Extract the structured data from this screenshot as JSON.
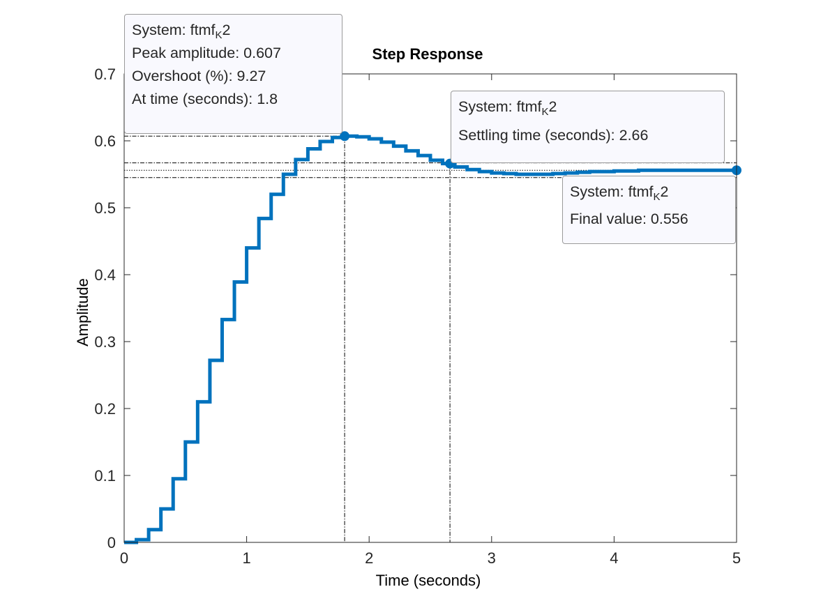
{
  "chart_data": {
    "type": "line",
    "title": "Step Response",
    "xlabel": "Time (seconds)",
    "ylabel": "Amplitude",
    "xlim": [
      0,
      5
    ],
    "ylim": [
      0,
      0.7
    ],
    "xticks": [
      "0",
      "1",
      "2",
      "3",
      "4",
      "5"
    ],
    "yticks": [
      "0",
      "0.1",
      "0.2",
      "0.3",
      "0.4",
      "0.5",
      "0.6",
      "0.7"
    ],
    "grid": false,
    "series": [
      {
        "color": "#0072bd",
        "step": true,
        "sample_time": 0.1,
        "x": [
          0,
          0.1,
          0.2,
          0.3,
          0.4,
          0.5,
          0.6,
          0.7,
          0.8,
          0.9,
          1.0,
          1.1,
          1.2,
          1.3,
          1.4,
          1.5,
          1.6,
          1.7,
          1.8,
          1.9,
          2.0,
          2.1,
          2.2,
          2.3,
          2.4,
          2.5,
          2.6,
          2.7,
          2.8,
          2.9,
          3.0,
          3.1,
          3.2,
          3.3,
          3.4,
          3.5,
          3.6,
          3.7,
          3.8,
          3.9,
          4.0,
          4.1,
          4.2,
          4.3,
          4.4,
          4.5,
          4.6,
          4.7,
          4.8,
          4.9,
          5.0
        ],
        "y": [
          0,
          0.004,
          0.019,
          0.05,
          0.095,
          0.15,
          0.21,
          0.272,
          0.333,
          0.389,
          0.44,
          0.484,
          0.52,
          0.55,
          0.572,
          0.588,
          0.599,
          0.605,
          0.607,
          0.606,
          0.603,
          0.598,
          0.592,
          0.585,
          0.578,
          0.571,
          0.566,
          0.561,
          0.557,
          0.554,
          0.552,
          0.551,
          0.55,
          0.55,
          0.55,
          0.551,
          0.552,
          0.553,
          0.554,
          0.554,
          0.555,
          0.555,
          0.556,
          0.556,
          0.556,
          0.556,
          0.556,
          0.556,
          0.556,
          0.556,
          0.556
        ]
      }
    ],
    "reference_lines": {
      "peak": {
        "x": 1.8,
        "y": 0.607
      },
      "settling_band": [
        0.545,
        0.567
      ],
      "final_value": 0.556,
      "settling_time": 2.66
    },
    "markers": [
      {
        "x": 1.8,
        "y": 0.607
      },
      {
        "x": 2.66,
        "y": 0.566
      },
      {
        "x": 5,
        "y": 0.556
      }
    ],
    "datatips": {
      "peak": {
        "system_prefix": "System: ftmf",
        "system_sub": "K",
        "system_suffix": "2",
        "lines": [
          "Peak amplitude: 0.607",
          "Overshoot (%): 9.27",
          "At time (seconds): 1.8"
        ]
      },
      "settling": {
        "system_prefix": "System: ftmf",
        "system_sub": "K",
        "system_suffix": "2",
        "lines": [
          "Settling time (seconds): 2.66"
        ]
      },
      "final": {
        "system_prefix": "System: ftmf",
        "system_sub": "K",
        "system_suffix": "2",
        "lines": [
          "Final value: 0.556"
        ]
      }
    }
  }
}
